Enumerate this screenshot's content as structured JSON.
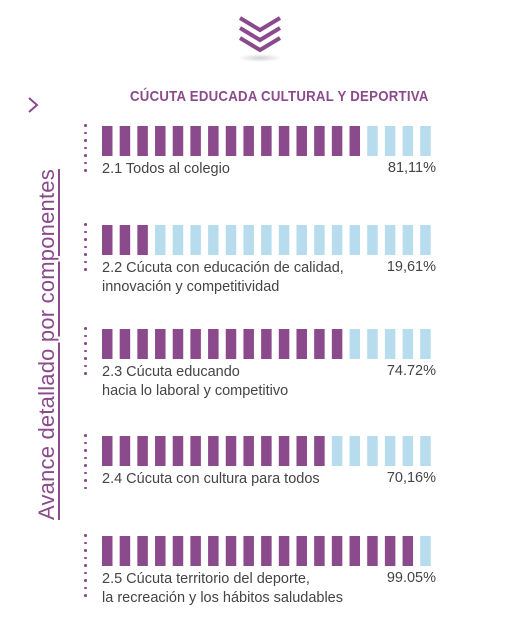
{
  "title": "CÚCUTA EDUCADA CULTURAL Y DEPORTIVA",
  "side_title": "Avance detallado por componentes",
  "colors": {
    "filled": "#8a4a8c",
    "empty": "#b7dcee",
    "accent": "#8a4a8c"
  },
  "chart_data": {
    "type": "bar",
    "title": "CÚCUTA EDUCADA CULTURAL Y DEPORTIVA",
    "value_unit": "%",
    "ylim": [
      0,
      100
    ],
    "bars_per_row": 19,
    "categories": [
      "2.1 Todos al colegio",
      "2.2 Cúcuta con educación de calidad, innovación y competitividad",
      "2.3 Cúcuta educando hacia lo laboral y competitivo",
      "2.4 Cúcuta con cultura para todos",
      "2.5 Cúcuta territorio del deporte, la recreación y los hábitos saludables"
    ],
    "values": [
      81.11,
      19.61,
      74.72,
      70.16,
      99.05
    ],
    "value_labels": [
      "81,11%",
      "19,61%",
      "74.72%",
      "70,16%",
      "99.05%"
    ],
    "category_lines": [
      [
        "2.1 Todos al colegio"
      ],
      [
        "2.2 Cúcuta con educación de calidad,",
        "innovación y competitividad"
      ],
      [
        "2.3 Cúcuta educando",
        "hacia lo laboral y competitivo"
      ],
      [
        "2.4 Cúcuta con cultura para todos"
      ],
      [
        "2.5 Cúcuta territorio del deporte,",
        "la recreación y los hábitos saludables"
      ]
    ]
  }
}
